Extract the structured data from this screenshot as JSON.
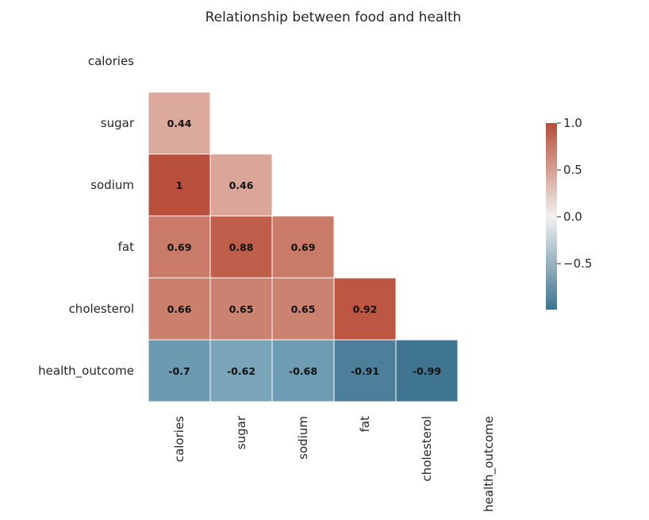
{
  "chart_data": {
    "type": "heatmap",
    "title": "Relationship between food and health",
    "variables": [
      "calories",
      "sugar",
      "sodium",
      "fat",
      "cholesterol",
      "health_outcome"
    ],
    "mask": "upper-triangle-including-diagonal",
    "cells": [
      {
        "row": "sugar",
        "col": "calories",
        "value": 0.44,
        "label": "0.44",
        "color": "#dcaa9d"
      },
      {
        "row": "sodium",
        "col": "calories",
        "value": 1.0,
        "label": "1",
        "color": "#b9503d"
      },
      {
        "row": "sodium",
        "col": "sugar",
        "value": 0.46,
        "label": "0.46",
        "color": "#d9a699"
      },
      {
        "row": "fat",
        "col": "calories",
        "value": 0.69,
        "label": "0.69",
        "color": "#c97a68"
      },
      {
        "row": "fat",
        "col": "sugar",
        "value": 0.88,
        "label": "0.88",
        "color": "#bf5e4a"
      },
      {
        "row": "fat",
        "col": "sodium",
        "value": 0.69,
        "label": "0.69",
        "color": "#c97a68"
      },
      {
        "row": "cholesterol",
        "col": "calories",
        "value": 0.66,
        "label": "0.66",
        "color": "#cb806e"
      },
      {
        "row": "cholesterol",
        "col": "sugar",
        "value": 0.65,
        "label": "0.65",
        "color": "#cb8271"
      },
      {
        "row": "cholesterol",
        "col": "sodium",
        "value": 0.65,
        "label": "0.65",
        "color": "#cb8271"
      },
      {
        "row": "cholesterol",
        "col": "fat",
        "value": 0.92,
        "label": "0.92",
        "color": "#bd5743"
      },
      {
        "row": "health_outcome",
        "col": "calories",
        "value": -0.7,
        "label": "-0.7",
        "color": "#6b9ab1"
      },
      {
        "row": "health_outcome",
        "col": "sugar",
        "value": -0.62,
        "label": "-0.62",
        "color": "#7aa4b7"
      },
      {
        "row": "health_outcome",
        "col": "sodium",
        "value": -0.68,
        "label": "-0.68",
        "color": "#6e9cb2"
      },
      {
        "row": "health_outcome",
        "col": "fat",
        "value": -0.91,
        "label": "-0.91",
        "color": "#4d7f9a"
      },
      {
        "row": "health_outcome",
        "col": "cholesterol",
        "value": -0.99,
        "label": "-0.99",
        "color": "#3f7591"
      }
    ],
    "colorbar": {
      "min": -0.99,
      "max": 1.0,
      "ticks": [
        {
          "value": 1.0,
          "label": "1.0"
        },
        {
          "value": 0.5,
          "label": "0.5"
        },
        {
          "value": 0.0,
          "label": "0.0"
        },
        {
          "value": -0.5,
          "label": "−0.5"
        }
      ],
      "colors": {
        "low": "#3e7490",
        "mid": "#f2f1f0",
        "high": "#b84c38"
      }
    },
    "grid": false,
    "legend": "right"
  }
}
